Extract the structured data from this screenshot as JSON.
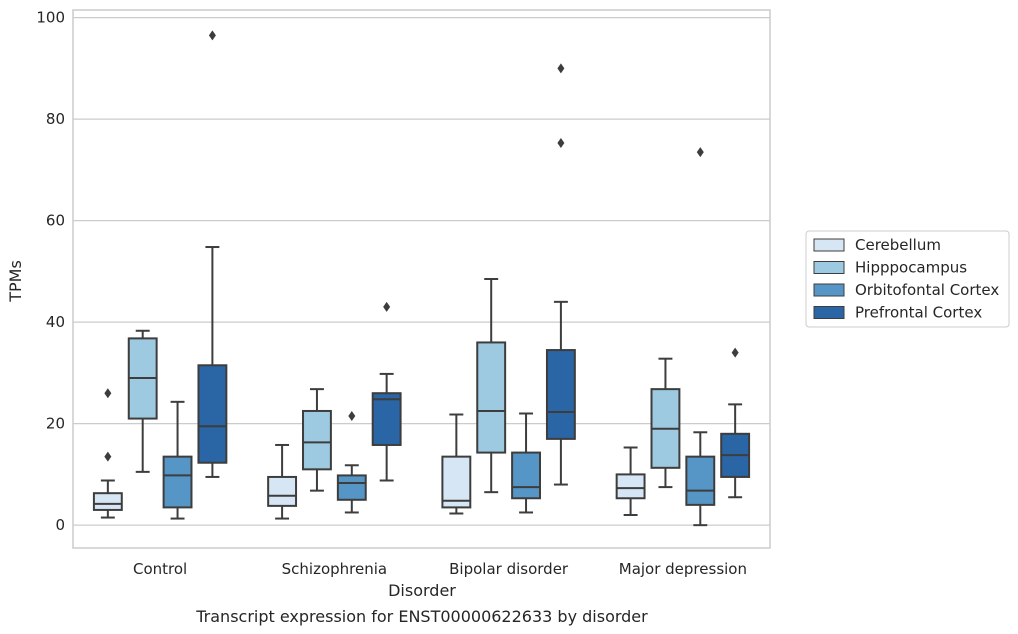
{
  "chart_data": {
    "type": "box",
    "xlabel": "Disorder",
    "ylabel": "TPMs",
    "caption": "Transcript expression for ENST00000622633 by disorder",
    "ylim": [
      -4.5,
      101.5
    ],
    "yticks": [
      0,
      20,
      40,
      60,
      80,
      100
    ],
    "ytick_labels": [
      "0",
      "20",
      "40",
      "60",
      "80",
      "100"
    ],
    "grid": "horizontal",
    "legend_position": "right",
    "categories": [
      "Control",
      "Schizophrenia",
      "Bipolar disorder",
      "Major depression"
    ],
    "series": [
      {
        "name": "Cerebellum",
        "color": "#d6e6f4",
        "boxes": [
          {
            "whislo": 1.5,
            "q1": 3.0,
            "med": 4.2,
            "q3": 6.3,
            "whishi": 8.8,
            "fliers": [
              13.5,
              26.0
            ]
          },
          {
            "whislo": 1.3,
            "q1": 3.8,
            "med": 5.8,
            "q3": 9.5,
            "whishi": 15.8,
            "fliers": []
          },
          {
            "whislo": 2.3,
            "q1": 3.5,
            "med": 4.8,
            "q3": 13.5,
            "whishi": 21.8,
            "fliers": []
          },
          {
            "whislo": 2.0,
            "q1": 5.3,
            "med": 7.3,
            "q3": 10.0,
            "whishi": 15.3,
            "fliers": []
          }
        ]
      },
      {
        "name": "Hipppocampus",
        "color": "#9ecae1",
        "boxes": [
          {
            "whislo": 10.5,
            "q1": 21.0,
            "med": 29.0,
            "q3": 36.8,
            "whishi": 38.3,
            "fliers": []
          },
          {
            "whislo": 6.8,
            "q1": 11.0,
            "med": 16.3,
            "q3": 22.5,
            "whishi": 26.8,
            "fliers": []
          },
          {
            "whislo": 6.5,
            "q1": 14.3,
            "med": 22.5,
            "q3": 36.0,
            "whishi": 48.5,
            "fliers": []
          },
          {
            "whislo": 7.5,
            "q1": 11.3,
            "med": 19.0,
            "q3": 26.8,
            "whishi": 32.8,
            "fliers": []
          }
        ]
      },
      {
        "name": "Orbitofontal Cortex",
        "color": "#5596c6",
        "boxes": [
          {
            "whislo": 1.3,
            "q1": 3.5,
            "med": 9.8,
            "q3": 13.5,
            "whishi": 24.3,
            "fliers": []
          },
          {
            "whislo": 2.5,
            "q1": 5.0,
            "med": 8.3,
            "q3": 9.8,
            "whishi": 11.8,
            "fliers": [
              21.5
            ]
          },
          {
            "whislo": 2.5,
            "q1": 5.3,
            "med": 7.5,
            "q3": 14.3,
            "whishi": 22.0,
            "fliers": []
          },
          {
            "whislo": 0.0,
            "q1": 4.0,
            "med": 6.8,
            "q3": 13.5,
            "whishi": 18.3,
            "fliers": [
              73.5
            ]
          }
        ]
      },
      {
        "name": "Prefrontal Cortex",
        "color": "#2a65a5",
        "boxes": [
          {
            "whislo": 9.5,
            "q1": 12.3,
            "med": 19.5,
            "q3": 31.5,
            "whishi": 54.8,
            "fliers": [
              96.5
            ]
          },
          {
            "whislo": 8.8,
            "q1": 15.8,
            "med": 24.8,
            "q3": 26.0,
            "whishi": 29.8,
            "fliers": [
              43.0
            ]
          },
          {
            "whislo": 8.0,
            "q1": 17.0,
            "med": 22.3,
            "q3": 34.5,
            "whishi": 44.0,
            "fliers": [
              75.3,
              90.0
            ]
          },
          {
            "whislo": 5.5,
            "q1": 9.5,
            "med": 13.8,
            "q3": 18.0,
            "whishi": 23.8,
            "fliers": [
              34.0
            ]
          }
        ]
      }
    ]
  }
}
